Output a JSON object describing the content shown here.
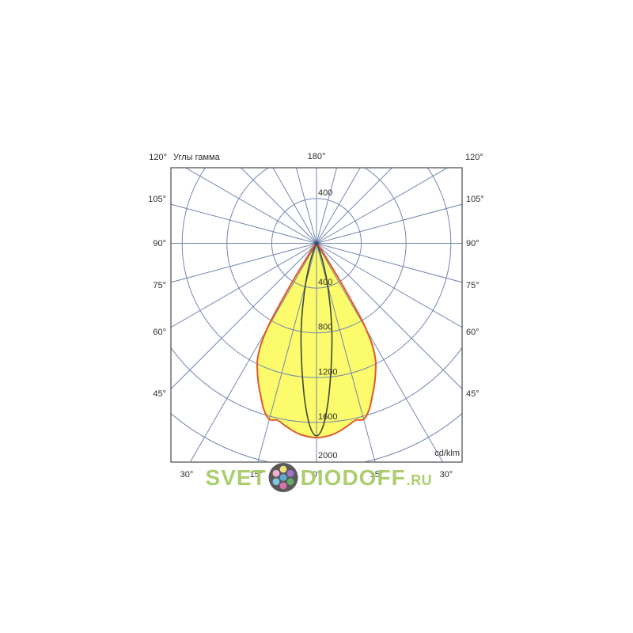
{
  "labels": {
    "corner_angle": "120°",
    "axis_title": "Углы гамма",
    "top_center_angle": "180°",
    "radial_unit": "cd/klm"
  },
  "colors": {
    "background": "#ffffff",
    "grid": "#7487af",
    "frame": "#4a4a4a",
    "text": "#2e2e2e",
    "center_dot": "#33517e",
    "watermark_green": "#a6ca62",
    "logo_circle": "#4b4b4b"
  },
  "watermark": {
    "text_left": "SVET",
    "text_right": "DIODOFF",
    "text_suffix": ".RU",
    "logo_dot_colors": [
      "#4fa3c9",
      "#f0a8cc",
      "#efe06a",
      "#9a68c8",
      "#56a65a",
      "#d964a8",
      "#72c3e3"
    ]
  },
  "chart_data": {
    "type": "line",
    "coordinate_system": "polar",
    "title": "Углы гамма",
    "angular_axis_title": "Углы гамма",
    "top_center_angle_label": "180°",
    "corner_angle_label": "120°",
    "radial_unit": "cd/klm",
    "radial_ticks": [
      400,
      800,
      1200,
      1600,
      2000
    ],
    "radial_max": 2000,
    "spoke_step_deg": 15,
    "side_angle_labels": [
      "105°",
      "90°",
      "75°",
      "60°",
      "45°"
    ],
    "bottom_angle_labels": [
      "30°",
      "15°",
      "0°",
      "15°",
      "30°"
    ],
    "legend_position": "none",
    "grid": true,
    "series": [
      {
        "name": "wide_beam_filled",
        "fill": "#fbfb6b",
        "stroke": "#e2582b",
        "stroke_width": 2,
        "gamma_deg": [
          0,
          2.5,
          5,
          7.5,
          10,
          12.5,
          15,
          17.5,
          20,
          22.5,
          25,
          27,
          29,
          30.5,
          32,
          33.5,
          35.5,
          38,
          40,
          45,
          50,
          60,
          75,
          90
        ],
        "values_cd_klm": [
          1735,
          1728,
          1712,
          1684,
          1650,
          1618,
          1628,
          1560,
          1455,
          1355,
          1250,
          1160,
          1010,
          800,
          420,
          190,
          95,
          60,
          45,
          30,
          20,
          12,
          6,
          0
        ]
      },
      {
        "name": "narrow_beam",
        "fill": "none",
        "stroke": "#3e4a33",
        "stroke_width": 1.6,
        "gamma_deg": [
          0,
          2,
          4,
          6,
          8,
          10,
          12,
          14,
          16,
          18,
          20,
          22,
          25,
          28,
          32,
          40,
          90
        ],
        "values_cd_klm": [
          1720,
          1640,
          1440,
          1200,
          980,
          790,
          600,
          440,
          320,
          215,
          130,
          75,
          32,
          14,
          5,
          0,
          0
        ]
      }
    ]
  }
}
